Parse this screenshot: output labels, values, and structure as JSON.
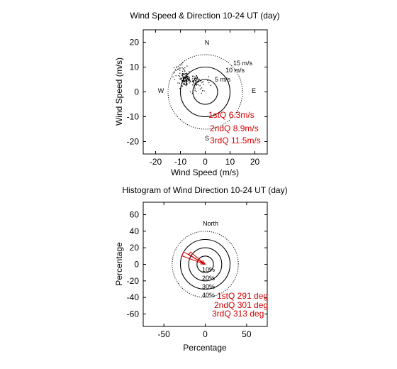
{
  "chart_data": [
    {
      "type": "scatter",
      "title": "Wind Speed & Direction 10-24 UT (day)",
      "xlabel": "Wind Speed (m/s)",
      "ylabel": "Wind Speed (m/s)",
      "xlim": [
        -25,
        25
      ],
      "ylim": [
        -25,
        25
      ],
      "xticks": [
        "-20",
        "-10",
        "0",
        "10",
        "20"
      ],
      "yticks": [
        "20",
        "10",
        "0",
        "-10",
        "-20"
      ],
      "compass": {
        "north": "N",
        "south": "S",
        "east": "E",
        "west": "W"
      },
      "rings": [
        {
          "radius": 5,
          "label": "5 m/s",
          "style": "solid"
        },
        {
          "radius": 10,
          "label": "10 m/s",
          "style": "solid"
        },
        {
          "radius": 15,
          "label": "15 m/s",
          "style": "dotted"
        }
      ],
      "quartile_labels": [
        "1stQ 6.3m/s",
        "2ndQ 8.9m/s",
        "3rdQ 11.5m/s"
      ],
      "points": [
        [
          -9.6,
          5.4
        ],
        [
          -8.9,
          7.4
        ],
        [
          -8.7,
          4.5
        ],
        [
          -6.1,
          4.4
        ],
        [
          -9.4,
          3.5
        ],
        [
          -6.4,
          3.6
        ],
        [
          -7.8,
          7.4
        ],
        [
          -10.2,
          5.2
        ],
        [
          -8.8,
          5.6
        ],
        [
          -8.2,
          4.4
        ],
        [
          -8.4,
          3.0
        ],
        [
          -8.8,
          4.1
        ],
        [
          -8.2,
          8.2
        ],
        [
          -8.1,
          3.0
        ],
        [
          -7.5,
          6.6
        ],
        [
          -7.3,
          7.3
        ],
        [
          -5.2,
          5.3
        ],
        [
          -7.8,
          4.1
        ],
        [
          -8.0,
          5.4
        ],
        [
          -9.2,
          6.8
        ],
        [
          -7.2,
          6.1
        ],
        [
          -8.3,
          8.7
        ],
        [
          -7.8,
          5.7
        ],
        [
          -7.6,
          3.9
        ],
        [
          -7.4,
          7.5
        ],
        [
          -8.6,
          4.8
        ],
        [
          -9.3,
          6.8
        ],
        [
          -8.5,
          4.0
        ],
        [
          -7.5,
          3.6
        ],
        [
          -9.7,
          5.1
        ],
        [
          -10.0,
          5.2
        ],
        [
          -4.2,
          5.5
        ],
        [
          -7.4,
          2.8
        ],
        [
          -6.6,
          4.5
        ],
        [
          -7.8,
          6.6
        ],
        [
          -7.7,
          6.8
        ],
        [
          -8.7,
          5.8
        ],
        [
          -8.3,
          5.8
        ],
        [
          -8.9,
          7.1
        ],
        [
          -6.0,
          4.1
        ],
        [
          -8.3,
          4.3
        ],
        [
          -9.3,
          2.4
        ],
        [
          -7.7,
          4.2
        ],
        [
          -9.2,
          4.4
        ],
        [
          -6.5,
          8.2
        ],
        [
          -7.4,
          5.1
        ],
        [
          -7.0,
          5.5
        ],
        [
          -6.7,
          5.1
        ],
        [
          -6.4,
          4.9
        ],
        [
          -7.9,
          4.8
        ],
        [
          -9.1,
          4.7
        ],
        [
          -8.1,
          4.6
        ],
        [
          -9.3,
          3.9
        ],
        [
          -7.5,
          6.2
        ],
        [
          -9.2,
          2.3
        ],
        [
          -7.7,
          4.8
        ],
        [
          -7.3,
          3.2
        ],
        [
          -8.7,
          5.4
        ],
        [
          -9.2,
          7.4
        ],
        [
          -7.2,
          5.4
        ],
        [
          -11.0,
          3.6
        ],
        [
          -9.4,
          4.5
        ],
        [
          -8.8,
          5.0
        ],
        [
          -6.4,
          5.7
        ],
        [
          -6.6,
          5.7
        ],
        [
          -6.3,
          5.2
        ],
        [
          -10.2,
          7.5
        ],
        [
          -7.6,
          4.8
        ],
        [
          -7.3,
          4.3
        ],
        [
          -7.4,
          4.6
        ],
        [
          -8.9,
          5.9
        ],
        [
          -9.8,
          5.6
        ],
        [
          -6.7,
          4.7
        ],
        [
          -8.1,
          5.8
        ],
        [
          -8.2,
          7.3
        ],
        [
          -7.5,
          5.8
        ],
        [
          -8.5,
          6.2
        ],
        [
          -9.3,
          6.6
        ],
        [
          -8.2,
          5.8
        ],
        [
          -6.7,
          4.7
        ],
        [
          -7.5,
          4.5
        ],
        [
          -6.2,
          4.5
        ],
        [
          -7.4,
          5.7
        ],
        [
          -8.4,
          6.9
        ],
        [
          -6.6,
          6.3
        ],
        [
          -8.4,
          3.3
        ],
        [
          -9.1,
          6.1
        ],
        [
          -8.6,
          3.0
        ],
        [
          -8.4,
          5.5
        ],
        [
          -7.4,
          3.4
        ],
        [
          -10.7,
          6.6
        ],
        [
          -7.6,
          4.6
        ],
        [
          -5.9,
          4.2
        ],
        [
          -8.4,
          4.0
        ],
        [
          -7.5,
          3.8
        ],
        [
          -9.1,
          6.7
        ],
        [
          -9.0,
          7.0
        ],
        [
          -6.5,
          4.9
        ],
        [
          -7.5,
          5.0
        ],
        [
          -7.8,
          5.6
        ],
        [
          -8.9,
          5.5
        ],
        [
          -10.3,
          6.3
        ],
        [
          -6.8,
          5.3
        ],
        [
          -10.3,
          3.5
        ],
        [
          -7.1,
          6.3
        ],
        [
          -7.0,
          4.9
        ],
        [
          -8.8,
          3.3
        ],
        [
          -8.9,
          4.5
        ],
        [
          -7.6,
          3.3
        ],
        [
          -7.6,
          3.0
        ],
        [
          -7.2,
          6.0
        ],
        [
          -7.8,
          2.5
        ],
        [
          -4.6,
          3.6
        ],
        [
          -3.9,
          5.6
        ],
        [
          -2.8,
          4.4
        ],
        [
          -3.5,
          2.7
        ],
        [
          -5.0,
          6.4
        ],
        [
          -2.3,
          5.1
        ],
        [
          -4.5,
          5.3
        ],
        [
          -3.7,
          6.2
        ],
        [
          -2.6,
          4.5
        ],
        [
          -4.3,
          4.8
        ],
        [
          -3.4,
          3.8
        ],
        [
          -1.4,
          1.6
        ],
        [
          -4.0,
          4.3
        ],
        [
          -5.1,
          4.4
        ],
        [
          -3.3,
          2.9
        ],
        [
          -3.1,
          5.6
        ],
        [
          -3.0,
          5.2
        ],
        [
          -3.8,
          5.5
        ],
        [
          -5.0,
          4.1
        ],
        [
          -3.2,
          5.8
        ],
        [
          -4.7,
          4.5
        ],
        [
          -1.8,
          4.4
        ],
        [
          -3.7,
          3.1
        ],
        [
          -2.7,
          5.0
        ],
        [
          -3.0,
          4.2
        ],
        [
          -5.1,
          2.8
        ],
        [
          -4.0,
          3.3
        ],
        [
          -4.7,
          4.1
        ],
        [
          -4.4,
          3.2
        ],
        [
          -4.0,
          4.6
        ],
        [
          -2.1,
          2.5
        ],
        [
          -4.4,
          6.1
        ],
        [
          -3.5,
          5.4
        ],
        [
          -1.6,
          4.8
        ],
        [
          -4.6,
          4.4
        ],
        [
          -5.1,
          4.4
        ],
        [
          -2.6,
          2.8
        ],
        [
          -4.2,
          1.9
        ],
        [
          -3.4,
          4.4
        ],
        [
          -1.3,
          3.7
        ],
        [
          -2.9,
          4.0
        ],
        [
          -3.4,
          4.9
        ],
        [
          -3.5,
          6.6
        ],
        [
          -3.2,
          6.0
        ],
        [
          -5.1,
          6.2
        ],
        [
          -4.8,
          4.0
        ],
        [
          -4.4,
          2.6
        ],
        [
          -3.2,
          4.0
        ],
        [
          -4.2,
          5.1
        ],
        [
          -3.9,
          3.6
        ],
        [
          -11.1,
          9.1
        ],
        [
          -12.4,
          7.7
        ],
        [
          -13.0,
          6.0
        ],
        [
          -11.5,
          10.1
        ],
        [
          -9.3,
          9.7
        ],
        [
          -10.4,
          9.6
        ],
        [
          -10.2,
          8.7
        ],
        [
          -7.3,
          10.4
        ],
        [
          -10.2,
          1.4
        ],
        [
          -11.8,
          8.6
        ],
        [
          -11.8,
          6.5
        ],
        [
          -12.6,
          9.7
        ],
        [
          -10.0,
          10.8
        ],
        [
          -12.3,
          5.0
        ],
        [
          -10.8,
          9.2
        ],
        [
          -9.1,
          8.3
        ],
        [
          -8.2,
          9.7
        ],
        [
          -9.4,
          10.9
        ],
        [
          -10.1,
          9.6
        ],
        [
          -8.9,
          9.3
        ],
        [
          -9.1,
          11.7
        ],
        [
          -8.8,
          9.2
        ],
        [
          -3.7,
          6.3
        ],
        [
          1.0,
          4.6
        ],
        [
          -4.1,
          1.3
        ],
        [
          2.2,
          2.6
        ],
        [
          -6.0,
          0.0
        ],
        [
          -5.2,
          -0.6
        ],
        [
          1.4,
          6.1
        ],
        [
          1.5,
          3.7
        ],
        [
          -2.0,
          1.2
        ],
        [
          -0.8,
          2.9
        ],
        [
          -3.5,
          0.2
        ],
        [
          -1.1,
          0.5
        ],
        [
          -0.9,
          4.2
        ],
        [
          -1.5,
          -0.5
        ],
        [
          -4.1,
          0.5
        ],
        [
          -0.4,
          0.4
        ]
      ]
    },
    {
      "type": "rose",
      "title": "Histogram of Wind Direction 10-24 UT (day)",
      "xlabel": "Percentage",
      "ylabel": "Percentage",
      "xlim": [
        -75,
        75
      ],
      "ylim": [
        -75,
        75
      ],
      "xticks": [
        "-50",
        "0",
        "50"
      ],
      "yticks": [
        "60",
        "40",
        "20",
        "0",
        "-20",
        "-40",
        "-60"
      ],
      "north_label": "North",
      "rings": [
        {
          "radius": 10,
          "label": "10%",
          "style": "solid"
        },
        {
          "radius": 20,
          "label": "20%",
          "style": "solid"
        },
        {
          "radius": 30,
          "label": "30%",
          "style": "solid"
        },
        {
          "radius": 40,
          "label": "40%",
          "style": "dotted"
        }
      ],
      "sectors": [
        {
          "from_deg": 290,
          "to_deg": 300,
          "percent": 30
        },
        {
          "from_deg": 300,
          "to_deg": 310,
          "percent": 23
        }
      ],
      "mean_direction_deg": 301,
      "mean_arrow_length_percent": 25,
      "quartile_labels": [
        "1stQ 291 deg",
        "2ndQ 301 deg",
        "3rdQ 313 deg"
      ]
    }
  ]
}
